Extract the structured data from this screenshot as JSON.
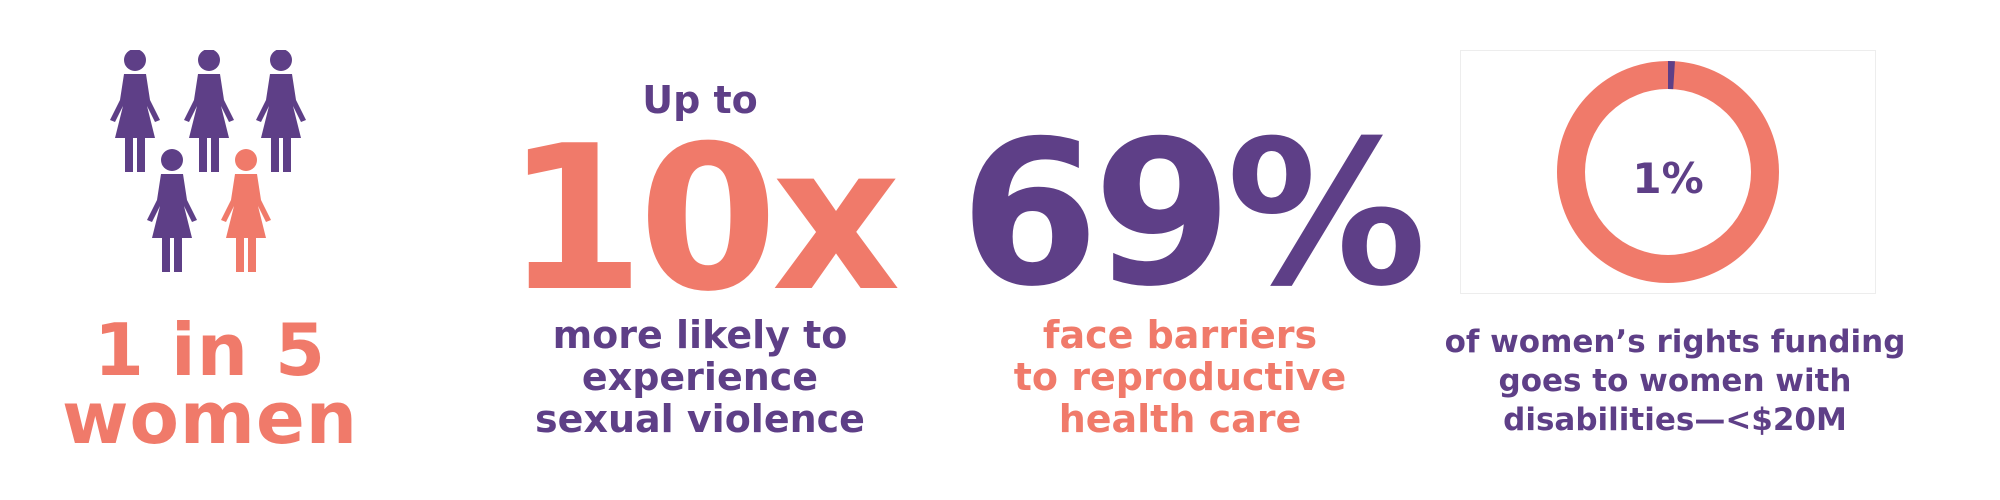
{
  "colors": {
    "purple": "#5E3F87",
    "coral": "#F07A6A"
  },
  "stat1": {
    "icons": [
      "woman-purple",
      "woman-purple",
      "woman-purple",
      "woman-purple",
      "woman-coral"
    ],
    "line1": "1 in 5",
    "line2": "women"
  },
  "stat2": {
    "prefix": "Up to",
    "value": "10x",
    "caption_lines": [
      "more likely to",
      "experience",
      "sexual violence"
    ]
  },
  "stat3": {
    "value": "69%",
    "caption_lines": [
      "face barriers",
      "to reproductive",
      "health care"
    ]
  },
  "stat4": {
    "donut_label": "1%",
    "donut_fraction": 0.01,
    "caption_lines": [
      "of women’s rights funding",
      "goes to women with",
      "disabilities—<$20M"
    ]
  }
}
